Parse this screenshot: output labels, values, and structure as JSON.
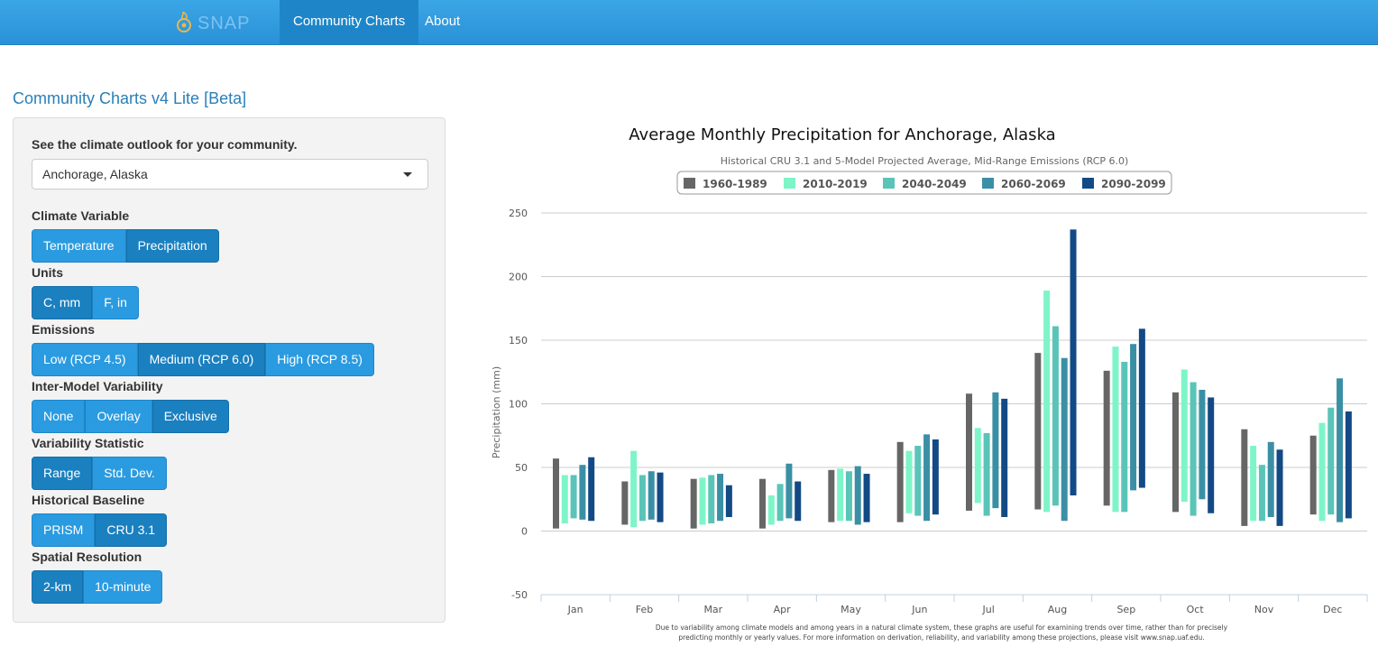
{
  "nav": {
    "brand": "SNAP",
    "items": [
      {
        "label": "Community Charts",
        "active": true
      },
      {
        "label": "About",
        "active": false
      }
    ]
  },
  "page_title": "Community Charts v4 Lite [Beta]",
  "sidebar": {
    "prompt": "See the climate outlook for your community.",
    "community": "Anchorage, Alaska",
    "groups": [
      {
        "label": "Climate Variable",
        "options": [
          "Temperature",
          "Precipitation"
        ],
        "selected": 1
      },
      {
        "label": "Units",
        "options": [
          "C, mm",
          "F, in"
        ],
        "selected": 0
      },
      {
        "label": "Emissions",
        "options": [
          "Low (RCP 4.5)",
          "Medium (RCP 6.0)",
          "High (RCP 8.5)"
        ],
        "selected": 1
      },
      {
        "label": "Inter-Model Variability",
        "options": [
          "None",
          "Overlay",
          "Exclusive"
        ],
        "selected": 2
      },
      {
        "label": "Variability Statistic",
        "options": [
          "Range",
          "Std. Dev."
        ],
        "selected": 0
      },
      {
        "label": "Historical Baseline",
        "options": [
          "PRISM",
          "CRU 3.1"
        ],
        "selected": 1
      },
      {
        "label": "Spatial Resolution",
        "options": [
          "2-km",
          "10-minute"
        ],
        "selected": 0
      }
    ]
  },
  "colors": {
    "series": [
      "#666666",
      "#7ef5c8",
      "#5ac4b8",
      "#3b8fa5",
      "#134a85"
    ]
  },
  "chart_data": {
    "type": "bar",
    "title": "Average Monthly Precipitation for Anchorage, Alaska",
    "subtitle": "Historical CRU 3.1 and 5-Model Projected Average, Mid-Range Emissions (RCP 6.0)",
    "xlabel": "",
    "ylabel": "Precipitation (mm)",
    "ylim": [
      -50,
      250
    ],
    "yticks": [
      -50,
      0,
      50,
      100,
      150,
      200,
      250
    ],
    "grid": true,
    "legend_position": "top-center",
    "categories": [
      "Jan",
      "Feb",
      "Mar",
      "Apr",
      "May",
      "Jun",
      "Jul",
      "Aug",
      "Sep",
      "Oct",
      "Nov",
      "Dec"
    ],
    "series": [
      {
        "name": "1960-1989",
        "low": [
          2,
          5,
          2,
          2,
          7,
          7,
          16,
          17,
          20,
          15,
          4,
          13
        ],
        "high": [
          57,
          39,
          41,
          41,
          48,
          70,
          108,
          140,
          126,
          109,
          80,
          75
        ]
      },
      {
        "name": "2010-2019",
        "low": [
          6,
          3,
          5,
          5,
          8,
          14,
          22,
          15,
          15,
          23,
          8,
          8
        ],
        "high": [
          44,
          63,
          42,
          28,
          49,
          63,
          81,
          189,
          145,
          127,
          67,
          85
        ]
      },
      {
        "name": "2040-2049",
        "low": [
          10,
          8,
          6,
          8,
          8,
          12,
          12,
          20,
          15,
          12,
          8,
          13
        ],
        "high": [
          44,
          44,
          44,
          37,
          47,
          67,
          77,
          161,
          133,
          117,
          52,
          97
        ]
      },
      {
        "name": "2060-2069",
        "low": [
          9,
          9,
          8,
          10,
          5,
          8,
          18,
          8,
          32,
          25,
          11,
          7
        ],
        "high": [
          52,
          47,
          45,
          53,
          51,
          76,
          109,
          136,
          147,
          111,
          70,
          120
        ]
      },
      {
        "name": "2090-2099",
        "low": [
          8,
          7,
          11,
          8,
          7,
          13,
          11,
          28,
          34,
          14,
          4,
          10
        ],
        "high": [
          58,
          46,
          36,
          39,
          45,
          72,
          104,
          237,
          159,
          105,
          64,
          94
        ]
      }
    ],
    "footnote": [
      "Due to variability among climate models and among years in a natural climate system, these graphs are useful for examining trends over time, rather than for precisely",
      "predicting monthly or yearly values. For more information on derivation, reliability, and variability among these projections, please visit www.snap.uaf.edu."
    ]
  }
}
